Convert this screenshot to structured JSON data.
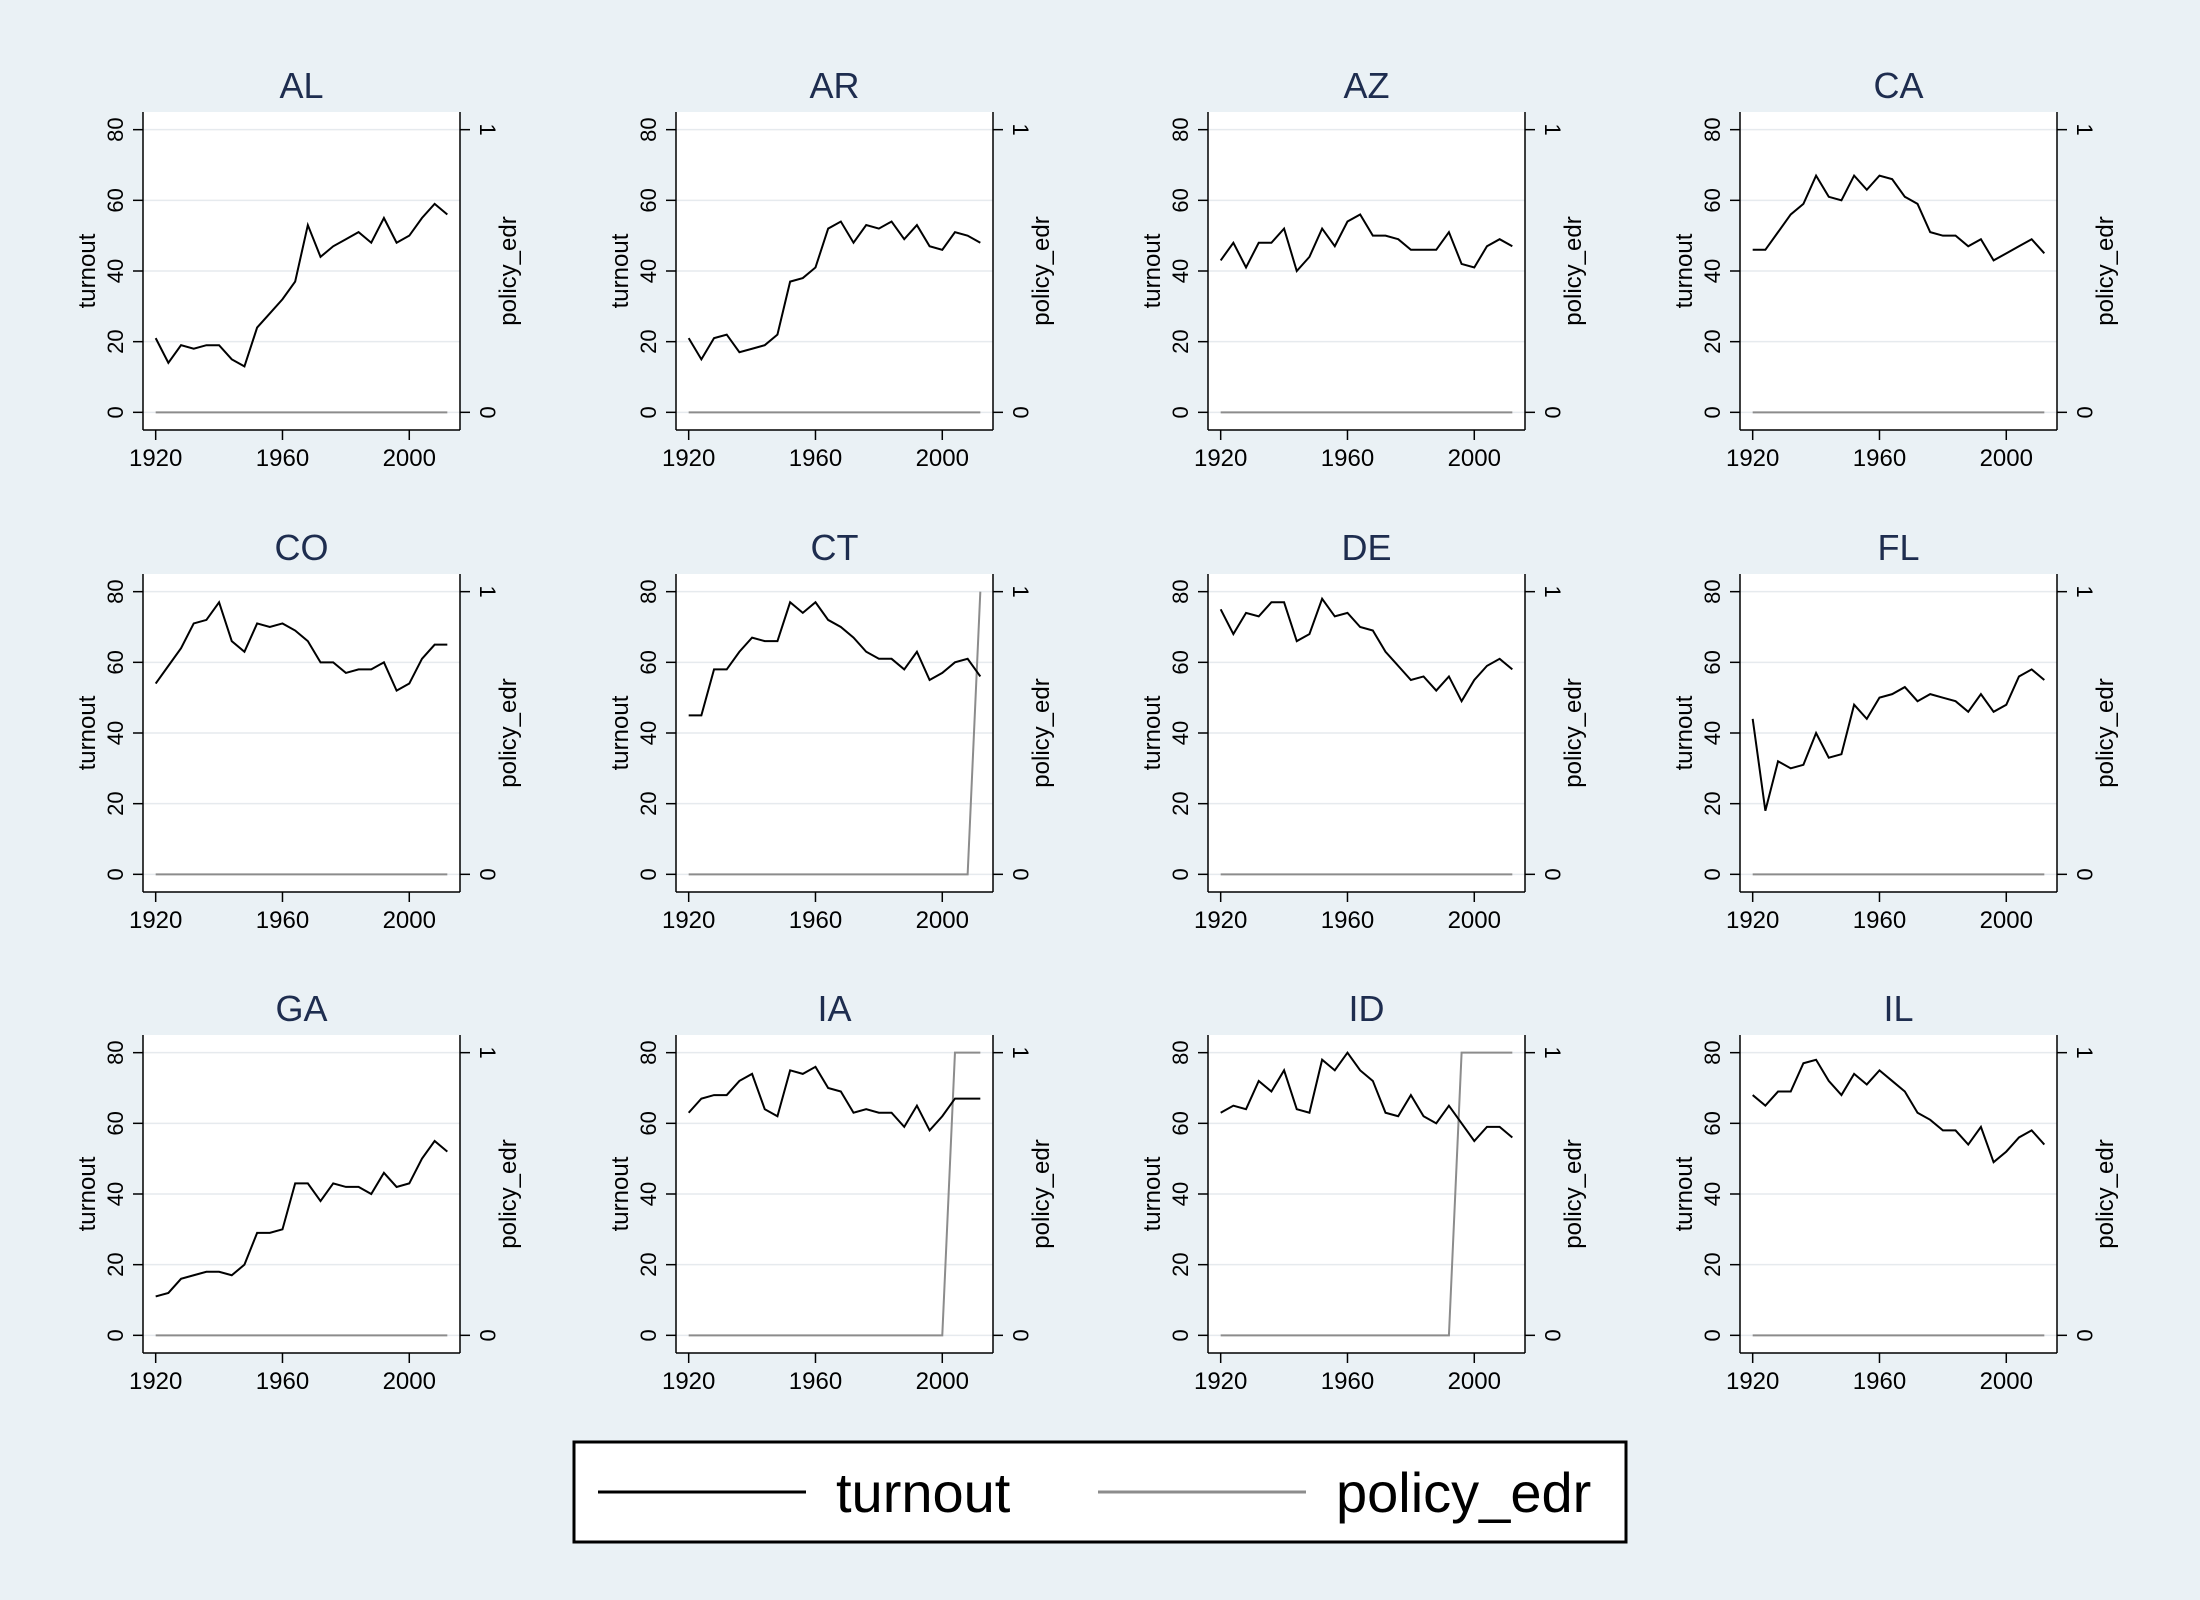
{
  "chart_data": {
    "type": "line",
    "layout": "small-multiples 3x4, dual y-axes",
    "x_axis": {
      "range": [
        1916,
        2016
      ],
      "ticks": [
        1920,
        1960,
        2000
      ]
    },
    "y_left": {
      "label": "turnout",
      "range": [
        -5,
        85
      ],
      "ticks": [
        0,
        20,
        40,
        60,
        80
      ]
    },
    "y_right": {
      "label": "policy_edr",
      "range": [
        -0.0625,
        1.0625
      ],
      "ticks": [
        0,
        1
      ]
    },
    "grid": true,
    "legend": {
      "position": "bottom-center",
      "entries": [
        "turnout",
        "policy_edr"
      ]
    },
    "colors": {
      "background": "#eaf1f5",
      "plot_area": "#ffffff",
      "title": "#1e2d4f",
      "turnout": "#000000",
      "policy_edr": "#8c8c8c",
      "grid": "#e6eaee"
    },
    "years": [
      1920,
      1924,
      1928,
      1932,
      1936,
      1940,
      1944,
      1948,
      1952,
      1956,
      1960,
      1964,
      1968,
      1972,
      1976,
      1980,
      1984,
      1988,
      1992,
      1996,
      2000,
      2004,
      2008,
      2012
    ],
    "panels": [
      {
        "title": "AL",
        "turnout": [
          21,
          14,
          19,
          18,
          19,
          19,
          15,
          13,
          24,
          28,
          32,
          37,
          53,
          44,
          47,
          49,
          51,
          48,
          55,
          48,
          50,
          55,
          59,
          56
        ],
        "policy_edr": [
          0,
          0,
          0,
          0,
          0,
          0,
          0,
          0,
          0,
          0,
          0,
          0,
          0,
          0,
          0,
          0,
          0,
          0,
          0,
          0,
          0,
          0,
          0,
          0
        ]
      },
      {
        "title": "AR",
        "turnout": [
          21,
          15,
          21,
          22,
          17,
          18,
          19,
          22,
          37,
          38,
          41,
          52,
          54,
          48,
          53,
          52,
          54,
          49,
          53,
          47,
          46,
          51,
          50,
          48
        ],
        "policy_edr": [
          0,
          0,
          0,
          0,
          0,
          0,
          0,
          0,
          0,
          0,
          0,
          0,
          0,
          0,
          0,
          0,
          0,
          0,
          0,
          0,
          0,
          0,
          0,
          0
        ]
      },
      {
        "title": "AZ",
        "turnout": [
          43,
          48,
          41,
          48,
          48,
          52,
          40,
          44,
          52,
          47,
          54,
          56,
          50,
          50,
          49,
          46,
          46,
          46,
          51,
          42,
          41,
          47,
          49,
          47
        ],
        "policy_edr": [
          0,
          0,
          0,
          0,
          0,
          0,
          0,
          0,
          0,
          0,
          0,
          0,
          0,
          0,
          0,
          0,
          0,
          0,
          0,
          0,
          0,
          0,
          0,
          0
        ]
      },
      {
        "title": "CA",
        "turnout": [
          46,
          46,
          51,
          56,
          59,
          67,
          61,
          60,
          67,
          63,
          67,
          66,
          61,
          59,
          51,
          50,
          50,
          47,
          49,
          43,
          45,
          47,
          49,
          45
        ],
        "policy_edr": [
          0,
          0,
          0,
          0,
          0,
          0,
          0,
          0,
          0,
          0,
          0,
          0,
          0,
          0,
          0,
          0,
          0,
          0,
          0,
          0,
          0,
          0,
          0,
          0
        ]
      },
      {
        "title": "CO",
        "turnout": [
          54,
          59,
          64,
          71,
          72,
          77,
          66,
          63,
          71,
          70,
          71,
          69,
          66,
          60,
          60,
          57,
          58,
          58,
          60,
          52,
          54,
          61,
          65,
          65
        ],
        "policy_edr": [
          0,
          0,
          0,
          0,
          0,
          0,
          0,
          0,
          0,
          0,
          0,
          0,
          0,
          0,
          0,
          0,
          0,
          0,
          0,
          0,
          0,
          0,
          0,
          0
        ]
      },
      {
        "title": "CT",
        "turnout": [
          45,
          45,
          58,
          58,
          63,
          67,
          66,
          66,
          77,
          74,
          77,
          72,
          70,
          67,
          63,
          61,
          61,
          58,
          63,
          55,
          57,
          60,
          61,
          56
        ],
        "policy_edr": [
          0,
          0,
          0,
          0,
          0,
          0,
          0,
          0,
          0,
          0,
          0,
          0,
          0,
          0,
          0,
          0,
          0,
          0,
          0,
          0,
          0,
          0,
          0,
          1
        ]
      },
      {
        "title": "DE",
        "turnout": [
          75,
          68,
          74,
          73,
          77,
          77,
          66,
          68,
          78,
          73,
          74,
          70,
          69,
          63,
          59,
          55,
          56,
          52,
          56,
          49,
          55,
          59,
          61,
          58
        ],
        "policy_edr": [
          0,
          0,
          0,
          0,
          0,
          0,
          0,
          0,
          0,
          0,
          0,
          0,
          0,
          0,
          0,
          0,
          0,
          0,
          0,
          0,
          0,
          0,
          0,
          0
        ]
      },
      {
        "title": "FL",
        "turnout": [
          44,
          18,
          32,
          30,
          31,
          40,
          33,
          34,
          48,
          44,
          50,
          51,
          53,
          49,
          51,
          50,
          49,
          46,
          51,
          46,
          48,
          56,
          58,
          55
        ],
        "policy_edr": [
          0,
          0,
          0,
          0,
          0,
          0,
          0,
          0,
          0,
          0,
          0,
          0,
          0,
          0,
          0,
          0,
          0,
          0,
          0,
          0,
          0,
          0,
          0,
          0
        ]
      },
      {
        "title": "GA",
        "turnout": [
          11,
          12,
          16,
          17,
          18,
          18,
          17,
          20,
          29,
          29,
          30,
          43,
          43,
          38,
          43,
          42,
          42,
          40,
          46,
          42,
          43,
          50,
          55,
          52
        ],
        "policy_edr": [
          0,
          0,
          0,
          0,
          0,
          0,
          0,
          0,
          0,
          0,
          0,
          0,
          0,
          0,
          0,
          0,
          0,
          0,
          0,
          0,
          0,
          0,
          0,
          0
        ]
      },
      {
        "title": "IA",
        "turnout": [
          63,
          67,
          68,
          68,
          72,
          74,
          64,
          62,
          75,
          74,
          76,
          70,
          69,
          63,
          64,
          63,
          63,
          59,
          65,
          58,
          62,
          67,
          67,
          67
        ],
        "policy_edr": [
          0,
          0,
          0,
          0,
          0,
          0,
          0,
          0,
          0,
          0,
          0,
          0,
          0,
          0,
          0,
          0,
          0,
          0,
          0,
          0,
          0,
          1,
          1,
          1
        ]
      },
      {
        "title": "ID",
        "turnout": [
          63,
          65,
          64,
          72,
          69,
          75,
          64,
          63,
          78,
          75,
          80,
          75,
          72,
          63,
          62,
          68,
          62,
          60,
          65,
          60,
          55,
          59,
          59,
          56
        ],
        "policy_edr": [
          0,
          0,
          0,
          0,
          0,
          0,
          0,
          0,
          0,
          0,
          0,
          0,
          0,
          0,
          0,
          0,
          0,
          0,
          0,
          1,
          1,
          1,
          1,
          1
        ]
      },
      {
        "title": "IL",
        "turnout": [
          68,
          65,
          69,
          69,
          77,
          78,
          72,
          68,
          74,
          71,
          75,
          72,
          69,
          63,
          61,
          58,
          58,
          54,
          59,
          49,
          52,
          56,
          58,
          54
        ],
        "policy_edr": [
          0,
          0,
          0,
          0,
          0,
          0,
          0,
          0,
          0,
          0,
          0,
          0,
          0,
          0,
          0,
          0,
          0,
          0,
          0,
          0,
          0,
          0,
          0,
          0
        ]
      }
    ]
  }
}
